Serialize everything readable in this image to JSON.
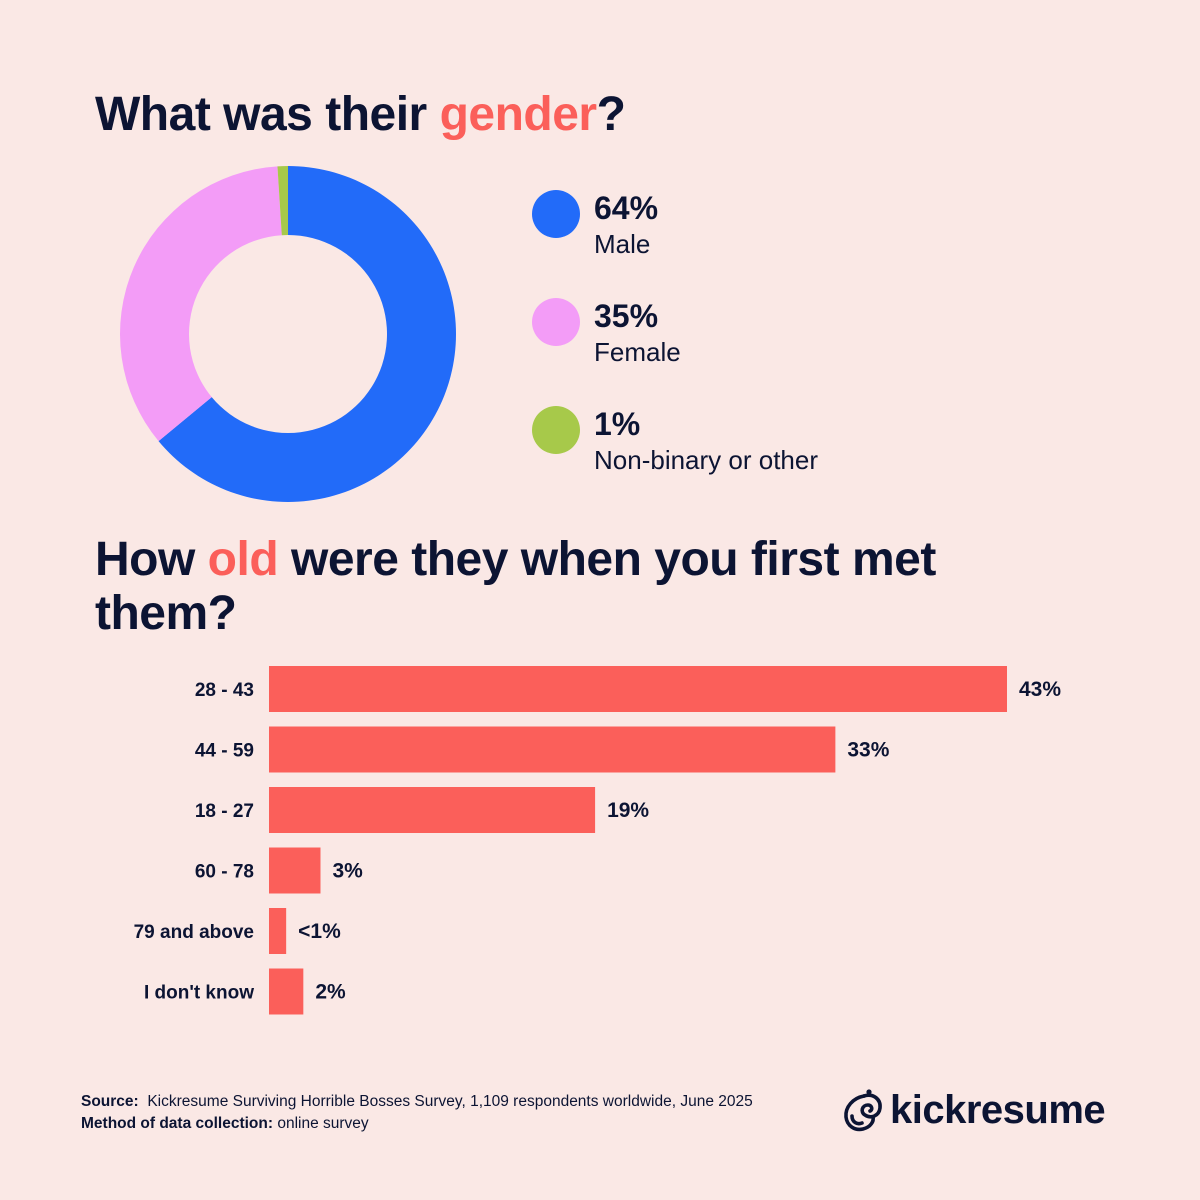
{
  "colors": {
    "background": "#fae8e5",
    "text": "#0c1433",
    "highlight": "#fb5f5a",
    "male": "#226bf9",
    "female": "#f39cf7",
    "other": "#a7c94a",
    "bar": "#fb5f5a"
  },
  "gender_section": {
    "title_before": "What was their ",
    "title_highlight": "gender",
    "title_after": "?"
  },
  "age_section": {
    "title_before": "How ",
    "title_highlight": "old",
    "title_after": " were they when you first met them?"
  },
  "chart_data": [
    {
      "type": "pie",
      "subtype": "donut",
      "slices": [
        {
          "label": "Male",
          "value": 64,
          "display": "64%",
          "color": "#226bf9"
        },
        {
          "label": "Female",
          "value": 35,
          "display": "35%",
          "color": "#f39cf7"
        },
        {
          "label": "Non-binary or other",
          "value": 1,
          "display": "1%",
          "color": "#a7c94a"
        }
      ],
      "legend_position": "right"
    },
    {
      "type": "bar",
      "orientation": "horizontal",
      "categories": [
        "28 - 43",
        "44 - 59",
        "18 - 27",
        "60 - 78",
        "79 and above",
        "I don't know"
      ],
      "values": [
        43,
        33,
        19,
        3,
        1,
        2
      ],
      "labels": [
        "43%",
        "33%",
        "19%",
        "3%",
        "<1%",
        "2%"
      ],
      "color": "#fb5f5a",
      "grid": false
    }
  ],
  "footer": {
    "source_label": "Source:",
    "source_text": "Kickresume Surviving Horrible Bosses Survey, 1,109 respondents worldwide, June 2025",
    "method_label": "Method of data collection:",
    "method_text": "online survey"
  },
  "brand": {
    "name": "kickresume",
    "icon": "kickresume-logo-icon"
  }
}
